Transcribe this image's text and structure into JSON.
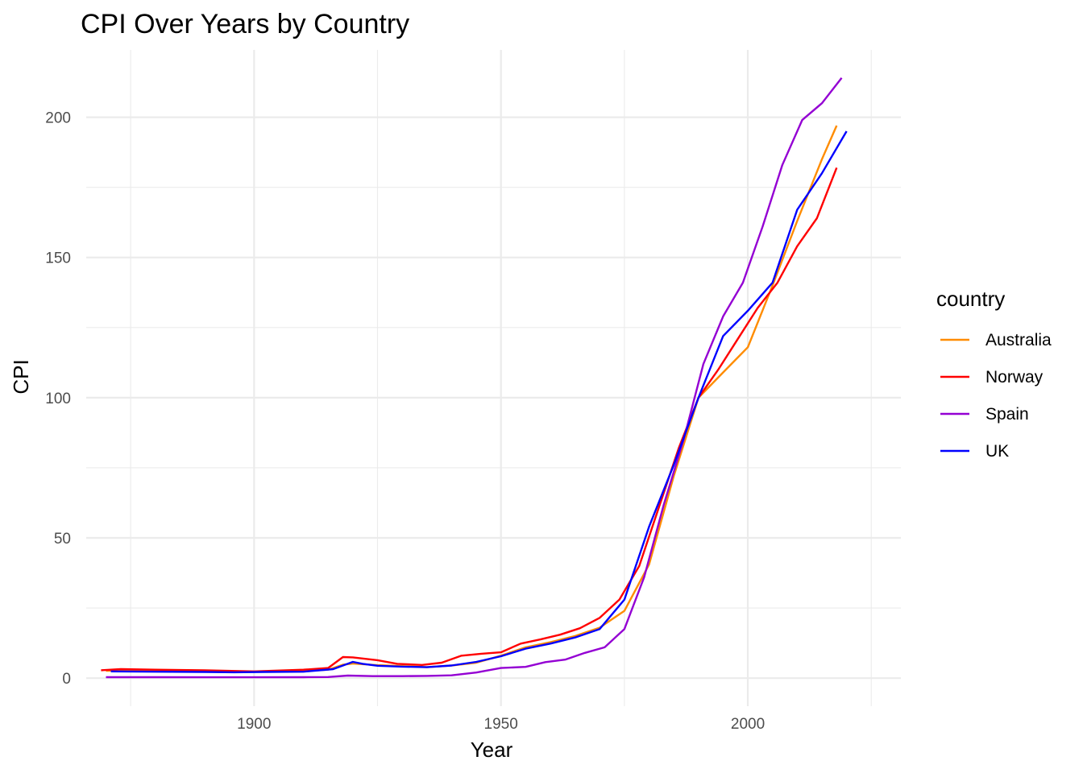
{
  "chart_data": {
    "type": "line",
    "title": "CPI Over Years by Country",
    "xlabel": "Year",
    "ylabel": "CPI",
    "xlim": [
      1866,
      2224
    ],
    "ylim": [
      -10,
      224
    ],
    "x_ticks": [
      1900,
      1950,
      2000
    ],
    "x_minor_ticks": [
      1875,
      1925,
      1975,
      2025
    ],
    "y_ticks": [
      0,
      50,
      100,
      150,
      200
    ],
    "y_minor_ticks": [
      25,
      75,
      125,
      175
    ],
    "grid": true,
    "legend": {
      "title": "country",
      "placement": "right"
    },
    "series": [
      {
        "name": "Australia",
        "color": "#FF8C00",
        "points": [
          [
            1870,
            2.6
          ],
          [
            1875,
            2.7
          ],
          [
            1880,
            2.6
          ],
          [
            1885,
            2.6
          ],
          [
            1890,
            2.5
          ],
          [
            1895,
            2.3
          ],
          [
            1900,
            2.3
          ],
          [
            1905,
            2.4
          ],
          [
            1910,
            2.5
          ],
          [
            1915,
            3.0
          ],
          [
            1918,
            4.8
          ],
          [
            1920,
            5.2
          ],
          [
            1925,
            4.6
          ],
          [
            1930,
            4.3
          ],
          [
            1935,
            3.9
          ],
          [
            1940,
            4.5
          ],
          [
            1945,
            5.5
          ],
          [
            1950,
            8.0
          ],
          [
            1955,
            11.0
          ],
          [
            1960,
            12.8
          ],
          [
            1965,
            15.0
          ],
          [
            1970,
            18.0
          ],
          [
            1975,
            24.0
          ],
          [
            1980,
            40.5
          ],
          [
            1985,
            72.0
          ],
          [
            1990,
            100.0
          ],
          [
            1995,
            109.0
          ],
          [
            2000,
            118.0
          ],
          [
            2005,
            140.0
          ],
          [
            2010,
            163.0
          ],
          [
            2015,
            185.0
          ],
          [
            2018,
            197.0
          ]
        ]
      },
      {
        "name": "Norway",
        "color": "#FF0000",
        "points": [
          [
            1869,
            2.8
          ],
          [
            1873,
            3.2
          ],
          [
            1880,
            3.0
          ],
          [
            1890,
            2.8
          ],
          [
            1900,
            2.4
          ],
          [
            1910,
            3.0
          ],
          [
            1915,
            3.6
          ],
          [
            1918,
            7.5
          ],
          [
            1920,
            7.4
          ],
          [
            1925,
            6.4
          ],
          [
            1929,
            5.1
          ],
          [
            1934,
            4.7
          ],
          [
            1938,
            5.5
          ],
          [
            1942,
            8.0
          ],
          [
            1946,
            8.7
          ],
          [
            1950,
            9.2
          ],
          [
            1954,
            12.3
          ],
          [
            1958,
            13.8
          ],
          [
            1962,
            15.5
          ],
          [
            1966,
            17.8
          ],
          [
            1970,
            21.5
          ],
          [
            1974,
            28.0
          ],
          [
            1978,
            40.0
          ],
          [
            1982,
            61.0
          ],
          [
            1986,
            82.0
          ],
          [
            1990,
            100.0
          ],
          [
            1994,
            110.0
          ],
          [
            1998,
            121.0
          ],
          [
            2002,
            132.0
          ],
          [
            2006,
            141.0
          ],
          [
            2010,
            154.0
          ],
          [
            2014,
            164.0
          ],
          [
            2018,
            182.0
          ]
        ]
      },
      {
        "name": "Spain",
        "color": "#9400D3",
        "points": [
          [
            1870,
            0.35
          ],
          [
            1880,
            0.35
          ],
          [
            1890,
            0.3
          ],
          [
            1900,
            0.3
          ],
          [
            1910,
            0.35
          ],
          [
            1915,
            0.4
          ],
          [
            1919,
            0.9
          ],
          [
            1924,
            0.7
          ],
          [
            1930,
            0.7
          ],
          [
            1935,
            0.8
          ],
          [
            1940,
            1.0
          ],
          [
            1945,
            2.0
          ],
          [
            1950,
            3.6
          ],
          [
            1955,
            4.0
          ],
          [
            1959,
            5.7
          ],
          [
            1963,
            6.6
          ],
          [
            1967,
            9.0
          ],
          [
            1971,
            11.0
          ],
          [
            1975,
            17.5
          ],
          [
            1979,
            36.0
          ],
          [
            1983,
            62.0
          ],
          [
            1987,
            85.0
          ],
          [
            1991,
            112.0
          ],
          [
            1995,
            129.0
          ],
          [
            1999,
            141.0
          ],
          [
            2003,
            161.0
          ],
          [
            2007,
            183.0
          ],
          [
            2011,
            199.0
          ],
          [
            2015,
            205.0
          ],
          [
            2019,
            214.0
          ]
        ]
      },
      {
        "name": "UK",
        "color": "#0000FF",
        "points": [
          [
            1871,
            2.4
          ],
          [
            1880,
            2.3
          ],
          [
            1890,
            2.2
          ],
          [
            1896,
            2.1
          ],
          [
            1902,
            2.2
          ],
          [
            1910,
            2.3
          ],
          [
            1916,
            3.2
          ],
          [
            1920,
            5.8
          ],
          [
            1922,
            5.1
          ],
          [
            1925,
            4.4
          ],
          [
            1930,
            4.1
          ],
          [
            1935,
            3.9
          ],
          [
            1940,
            4.5
          ],
          [
            1945,
            5.8
          ],
          [
            1950,
            7.8
          ],
          [
            1955,
            10.5
          ],
          [
            1960,
            12.3
          ],
          [
            1965,
            14.5
          ],
          [
            1970,
            17.5
          ],
          [
            1975,
            28.0
          ],
          [
            1980,
            54.0
          ],
          [
            1985,
            76.0
          ],
          [
            1990,
            100.0
          ],
          [
            1995,
            122.0
          ],
          [
            2000,
            131.0
          ],
          [
            2005,
            141.0
          ],
          [
            2010,
            167.0
          ],
          [
            2015,
            180.0
          ],
          [
            2020,
            195.0
          ]
        ]
      }
    ]
  }
}
